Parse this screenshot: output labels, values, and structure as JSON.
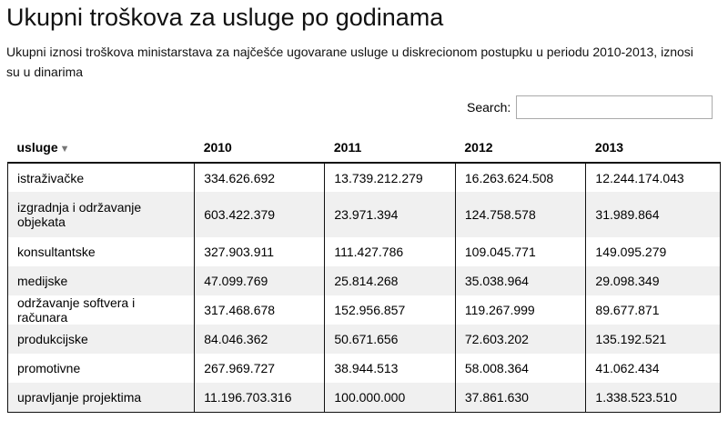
{
  "title": "Ukupni troškova za usluge po godinama",
  "subtitle": "Ukupni iznosi troškova ministarstava za najčešće ugovarane usluge u diskrecionom postupku u periodu 2010-2013, iznosi su u dinarima",
  "search": {
    "label": "Search:",
    "value": "",
    "placeholder": ""
  },
  "table": {
    "headers": [
      "usluge",
      "2010",
      "2011",
      "2012",
      "2013"
    ],
    "sorted_column_icon": "sort-desc-icon",
    "rows": [
      [
        "istraživačke",
        "334.626.692",
        "13.739.212.279",
        "16.263.624.508",
        "12.244.174.043"
      ],
      [
        "izgradnja i održavanje objekata",
        "603.422.379",
        "23.971.394",
        "124.758.578",
        "31.989.864"
      ],
      [
        "konsultantske",
        "327.903.911",
        "111.427.786",
        "109.045.771",
        "149.095.279"
      ],
      [
        "medijske",
        "47.099.769",
        "25.814.268",
        "35.038.964",
        "29.098.349"
      ],
      [
        "održavanje softvera i računara",
        "317.468.678",
        "152.956.857",
        "119.267.999",
        "89.677.871"
      ],
      [
        "produkcijske",
        "84.046.362",
        "50.671.656",
        "72.603.202",
        "135.192.521"
      ],
      [
        "promotivne",
        "267.969.727",
        "38.944.513",
        "58.008.364",
        "41.062.434"
      ],
      [
        "upravljanje projektima",
        "11.196.703.316",
        "100.000.000",
        "37.861.630",
        "1.338.523.510"
      ]
    ]
  }
}
